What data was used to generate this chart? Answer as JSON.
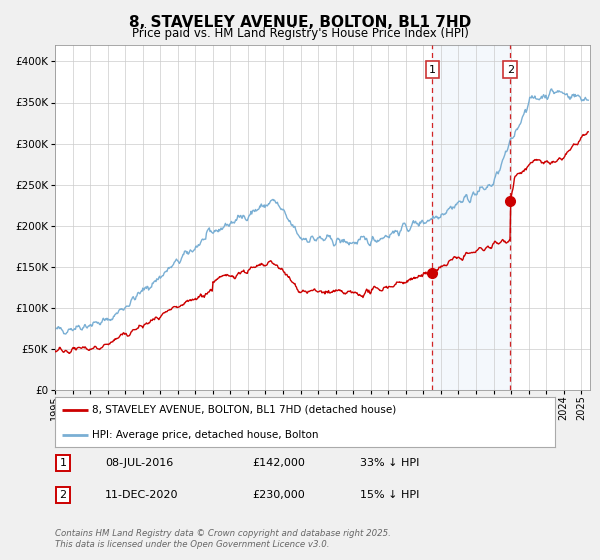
{
  "title": "8, STAVELEY AVENUE, BOLTON, BL1 7HD",
  "subtitle": "Price paid vs. HM Land Registry's House Price Index (HPI)",
  "legend_line1": "8, STAVELEY AVENUE, BOLTON, BL1 7HD (detached house)",
  "legend_line2": "HPI: Average price, detached house, Bolton",
  "sale1_date": "08-JUL-2016",
  "sale1_price": 142000,
  "sale1_note": "33% ↓ HPI",
  "sale2_date": "11-DEC-2020",
  "sale2_price": 230000,
  "sale2_note": "15% ↓ HPI",
  "footer": "Contains HM Land Registry data © Crown copyright and database right 2025.\nThis data is licensed under the Open Government Licence v3.0.",
  "red_color": "#cc0000",
  "blue_color": "#7aafd4",
  "background": "#f0f0f0",
  "plot_bg": "#ffffff",
  "ylim": [
    0,
    420000
  ],
  "yticks": [
    0,
    50000,
    100000,
    150000,
    200000,
    250000,
    300000,
    350000,
    400000
  ],
  "sale1_x": 2016.52,
  "sale2_x": 2020.95,
  "xmin": 1995.0,
  "xmax": 2025.5
}
